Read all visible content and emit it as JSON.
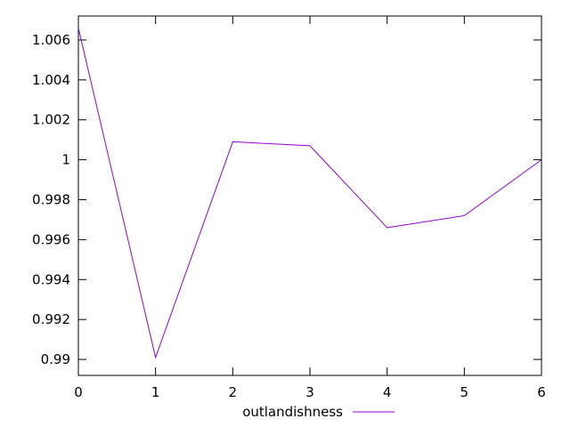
{
  "chart_data": {
    "type": "line",
    "title": "",
    "xlabel": "",
    "ylabel": "",
    "xlim": [
      0,
      6
    ],
    "ylim": [
      0.9892,
      1.0072
    ],
    "x_ticks": [
      "0",
      "1",
      "2",
      "3",
      "4",
      "5",
      "6"
    ],
    "y_ticks": [
      "0.99",
      "0.992",
      "0.994",
      "0.996",
      "0.998",
      "1",
      "1.002",
      "1.004",
      "1.006"
    ],
    "grid": false,
    "legend_position": "bottom-center",
    "series": [
      {
        "name": "outlandishness",
        "color": "#9400d3",
        "x": [
          0,
          1,
          2,
          3,
          4,
          5,
          6
        ],
        "values": [
          1.0066,
          0.9901,
          1.0009,
          1.0007,
          0.9966,
          0.9972,
          1.0
        ]
      }
    ]
  }
}
